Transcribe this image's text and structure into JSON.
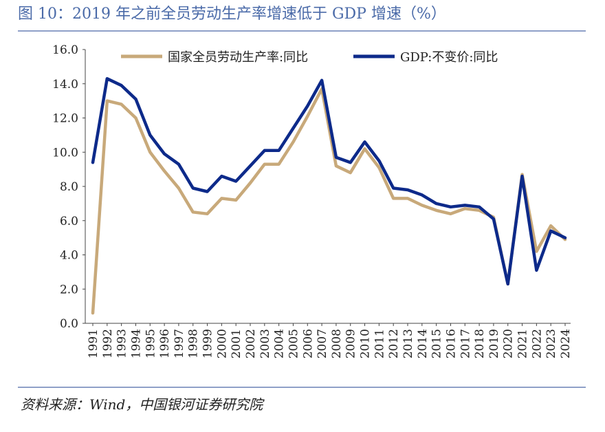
{
  "title": "图 10：2019 年之前全员劳动生产率增速低于 GDP 增速（%）",
  "source": "资料来源：Wind，中国银河证券研究院",
  "colors": {
    "labor": "#c8a97a",
    "gdp": "#0d2a8a",
    "accent": "#4a6aa8"
  },
  "chart_data": {
    "type": "line",
    "title": "2019 年之前全员劳动生产率增速低于 GDP 增速（%）",
    "xlabel": "",
    "ylabel": "",
    "ylim": [
      0,
      16
    ],
    "yticks": [
      "0.0",
      "2.0",
      "4.0",
      "6.0",
      "8.0",
      "10.0",
      "12.0",
      "14.0",
      "16.0"
    ],
    "categories": [
      "1991",
      "1992",
      "1993",
      "1994",
      "1995",
      "1996",
      "1997",
      "1998",
      "1999",
      "2000",
      "2001",
      "2002",
      "2003",
      "2004",
      "2005",
      "2006",
      "2007",
      "2008",
      "2009",
      "2010",
      "2011",
      "2012",
      "2013",
      "2014",
      "2015",
      "2016",
      "2017",
      "2018",
      "2019",
      "2020",
      "2021",
      "2022",
      "2023",
      "2024"
    ],
    "legend_position": "top",
    "series": [
      {
        "name": "国家全员劳动生产率:同比",
        "color": "#c8a97a",
        "values": [
          0.6,
          13.0,
          12.8,
          12.0,
          10.0,
          8.9,
          7.9,
          6.5,
          6.4,
          7.3,
          7.2,
          8.2,
          9.3,
          9.3,
          10.6,
          12.1,
          13.7,
          9.2,
          8.8,
          10.2,
          9.1,
          7.3,
          7.3,
          6.9,
          6.6,
          6.4,
          6.7,
          6.6,
          6.2,
          2.3,
          8.7,
          4.2,
          5.7,
          4.9
        ]
      },
      {
        "name": "GDP:不变价:同比",
        "color": "#0d2a8a",
        "values": [
          9.4,
          14.3,
          13.9,
          13.1,
          11.0,
          9.9,
          9.3,
          7.9,
          7.7,
          8.6,
          8.3,
          9.2,
          10.1,
          10.1,
          11.4,
          12.7,
          14.2,
          9.7,
          9.4,
          10.6,
          9.5,
          7.9,
          7.8,
          7.5,
          7.0,
          6.8,
          6.9,
          6.8,
          6.1,
          2.3,
          8.6,
          3.1,
          5.4,
          5.0
        ]
      }
    ]
  }
}
